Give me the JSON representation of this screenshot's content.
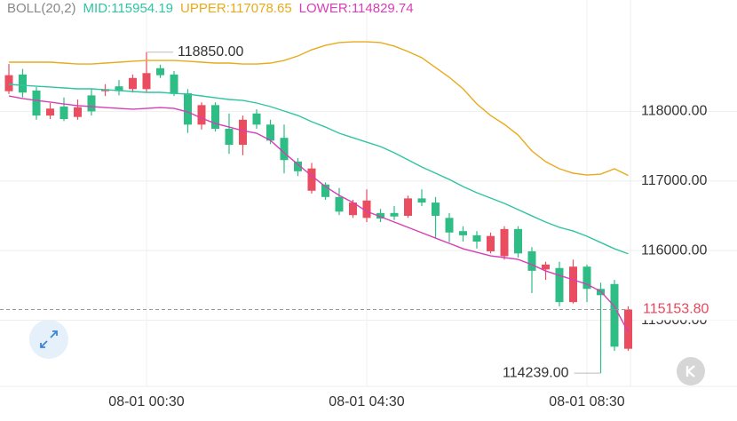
{
  "chart_data": {
    "type": "candlestick",
    "indicator": "BOLL(20,2)",
    "categories": [
      null,
      null,
      null,
      null,
      null,
      null,
      null,
      null,
      null,
      null,
      "08-01 00:30",
      null,
      null,
      null,
      null,
      null,
      null,
      null,
      null,
      null,
      null,
      null,
      null,
      null,
      null,
      null,
      "08-01 04:30",
      null,
      null,
      null,
      null,
      null,
      null,
      null,
      null,
      null,
      null,
      null,
      null,
      null,
      null,
      null,
      "08-01 08:30",
      null,
      null,
      null
    ],
    "open": [
      118290,
      118530,
      118300,
      117940,
      118070,
      117920,
      118230,
      118290,
      118360,
      118320,
      118320,
      118620,
      118530,
      118260,
      117810,
      118090,
      117750,
      117520,
      117970,
      117810,
      117620,
      117280,
      116860,
      116950,
      116770,
      116510,
      116470,
      116540,
      116540,
      116500,
      116750,
      116690,
      116470,
      116280,
      116220,
      115990,
      115920,
      116310,
      115990,
      115730,
      115750,
      115260,
      115770,
      115450,
      115520,
      114590
    ],
    "high": [
      118680,
      118610,
      118350,
      118120,
      118200,
      118170,
      118320,
      118390,
      118450,
      118530,
      118850,
      118670,
      118580,
      118320,
      118130,
      118130,
      117970,
      117940,
      118030,
      117880,
      117810,
      117330,
      117260,
      116980,
      116900,
      116730,
      116880,
      116600,
      116640,
      116790,
      116880,
      116770,
      116540,
      116350,
      116280,
      116260,
      116350,
      116350,
      116050,
      115840,
      115840,
      115870,
      115800,
      115540,
      115580,
      115200
    ],
    "low": [
      118250,
      118200,
      117880,
      117890,
      117860,
      117880,
      117940,
      118220,
      118230,
      118270,
      118270,
      118480,
      118220,
      117690,
      117740,
      117710,
      117390,
      117370,
      117750,
      117530,
      117110,
      117070,
      116820,
      116730,
      116510,
      116470,
      116410,
      116410,
      116440,
      116470,
      116640,
      116180,
      116120,
      116130,
      116030,
      115960,
      115870,
      115900,
      115390,
      115580,
      115200,
      115240,
      115260,
      114239,
      114560,
      114560
    ],
    "close": [
      118520,
      118270,
      117940,
      118040,
      117890,
      118060,
      118000,
      118320,
      118290,
      118480,
      118550,
      118520,
      118250,
      117810,
      118090,
      117750,
      117520,
      117880,
      117810,
      117580,
      117300,
      117140,
      117180,
      116770,
      116560,
      116690,
      116720,
      116460,
      116490,
      116750,
      116690,
      116500,
      116260,
      116220,
      116130,
      116210,
      116310,
      115960,
      115710,
      115800,
      115260,
      115770,
      115450,
      115360,
      114620,
      115153.8
    ],
    "up_color": "#ea4d5f",
    "down_color": "#2ebd85",
    "series": [
      {
        "name": "MID:115954.19",
        "color": "#30c4a2",
        "values": [
          118388,
          118375,
          118362,
          118350,
          118337,
          118324,
          118324,
          118311,
          118299,
          118286,
          118273,
          118273,
          118260,
          118247,
          118222,
          118196,
          118171,
          118158,
          118120,
          118069,
          118005,
          117941,
          117852,
          117775,
          117686,
          117622,
          117558,
          117495,
          117405,
          117303,
          117201,
          117112,
          117022,
          116920,
          116831,
          116755,
          116678,
          116589,
          116499,
          116410,
          116334,
          116282,
          116206,
          116116,
          116027,
          115954.19
        ]
      },
      {
        "name": "UPPER:117078.65",
        "color": "#e9aa1c",
        "values": [
          118707,
          118707,
          118707,
          118707,
          118694,
          118681,
          118681,
          118694,
          118707,
          118720,
          118732,
          118732,
          118732,
          118720,
          118707,
          118694,
          118694,
          118681,
          118681,
          118694,
          118732,
          118796,
          118885,
          118949,
          118988,
          119000,
          119000,
          118988,
          118937,
          118860,
          118771,
          118630,
          118490,
          118324,
          118107,
          117941,
          117814,
          117660,
          117431,
          117278,
          117176,
          117112,
          117086,
          117099,
          117176,
          117078.65
        ]
      },
      {
        "name": "LOWER:114829.74",
        "color": "#d63fb5",
        "values": [
          118222,
          118184,
          118158,
          118133,
          118107,
          118082,
          118069,
          118056,
          118043,
          118031,
          118043,
          118056,
          118043,
          117992,
          117903,
          117826,
          117775,
          117724,
          117686,
          117584,
          117405,
          117239,
          117074,
          116920,
          116793,
          116691,
          116563,
          116487,
          116410,
          116334,
          116257,
          116180,
          116104,
          116027,
          115976,
          115925,
          115900,
          115874,
          115798,
          115708,
          115644,
          115581,
          115517,
          115415,
          115198,
          114829.74
        ]
      }
    ],
    "ylim": [
      114050,
      119600
    ],
    "yticks": [
      {
        "value": 115000,
        "label": "115000.00"
      },
      {
        "value": 116000,
        "label": "116000.00"
      },
      {
        "value": 117000,
        "label": "117000.00"
      },
      {
        "value": 118000,
        "label": "118000.00"
      }
    ],
    "grid": true,
    "annotations": [
      {
        "text": "118850.00",
        "value": 118850
      },
      {
        "text": "114239.00",
        "value": 114239
      }
    ],
    "last_price": {
      "text": "115153.80",
      "value": 115153.8
    }
  }
}
